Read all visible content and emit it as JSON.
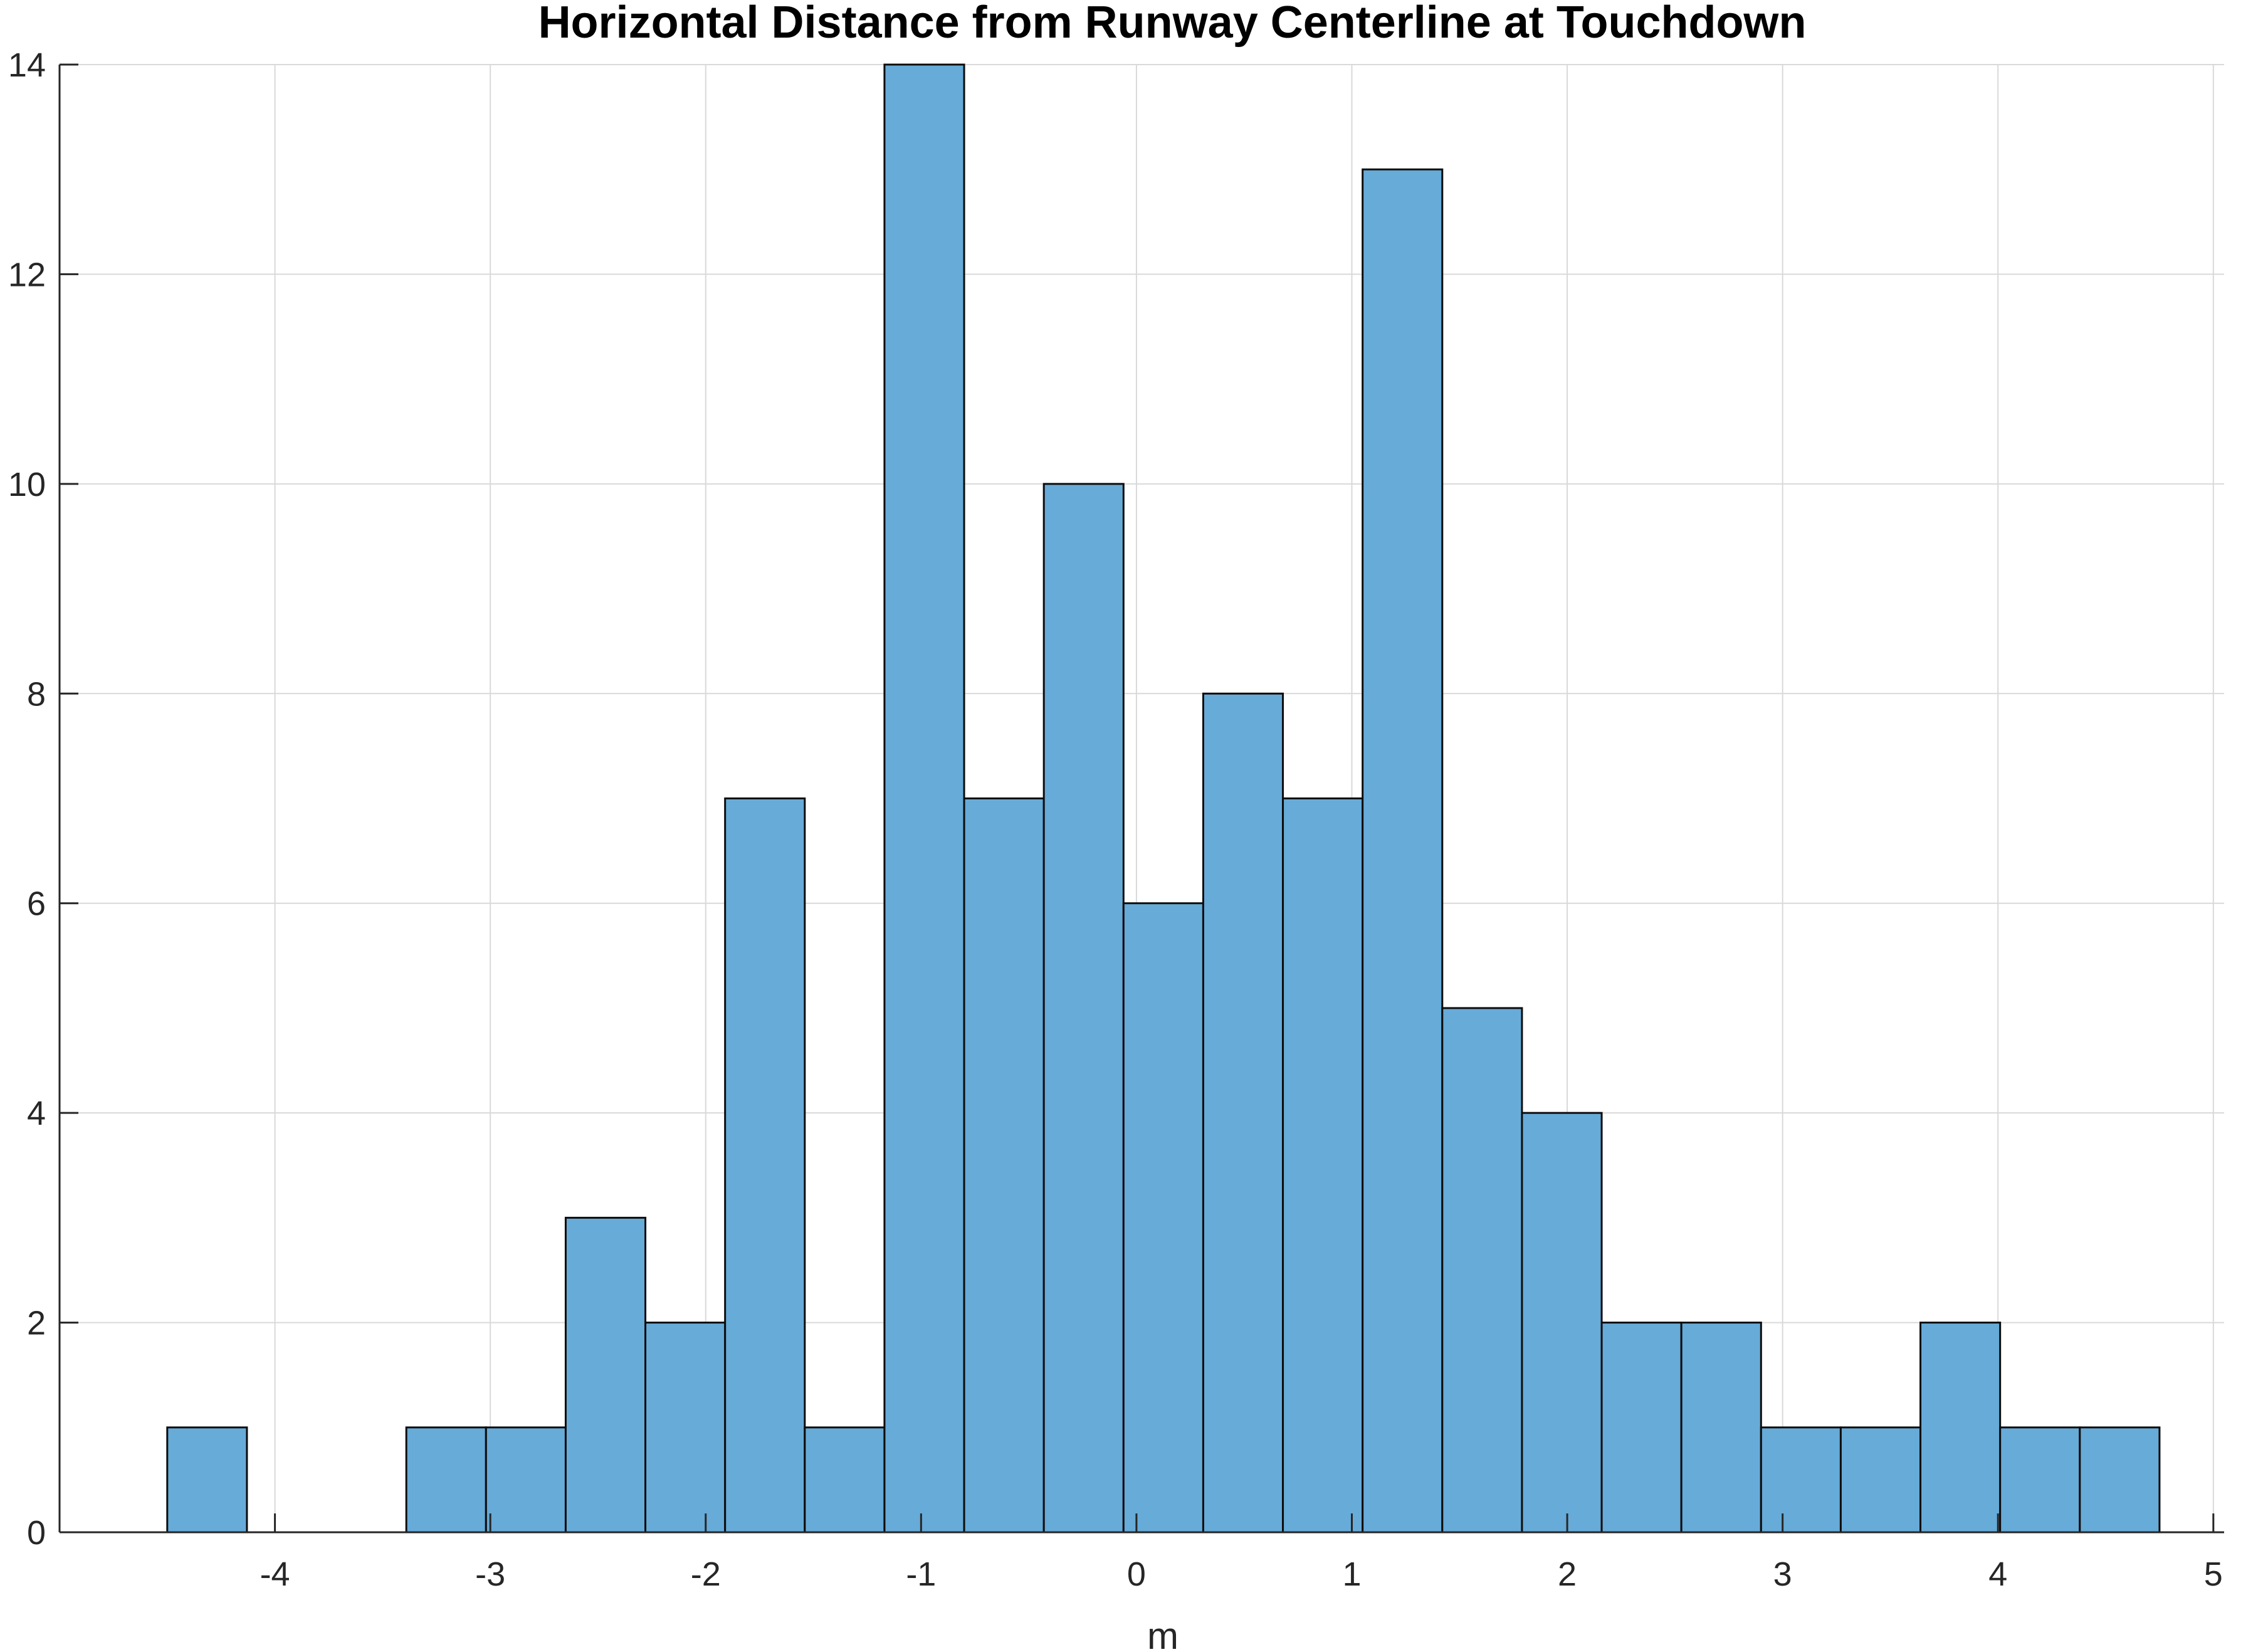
{
  "chart_data": {
    "type": "bar",
    "title": "Horizontal Distance from Runway Centerline at Touchdown",
    "xlabel": "m",
    "ylabel": "",
    "xlim": [
      -5.0,
      5.05
    ],
    "ylim": [
      0,
      14
    ],
    "xticks": [
      "-4",
      "-3",
      "-2",
      "-1",
      "0",
      "1",
      "2",
      "3",
      "4",
      "5"
    ],
    "yticks": [
      "0",
      "2",
      "4",
      "6",
      "8",
      "10",
      "12",
      "14"
    ],
    "bin_edges": [
      -4.5,
      -4.13,
      -3.76,
      -3.39,
      -3.02,
      -2.65,
      -2.28,
      -1.91,
      -1.54,
      -1.17,
      -0.8,
      -0.43,
      -0.06,
      0.31,
      0.68,
      1.05,
      1.42,
      1.79,
      2.16,
      2.53,
      2.9,
      3.27,
      3.64,
      4.01,
      4.38,
      4.75
    ],
    "values": [
      1,
      0,
      0,
      1,
      1,
      3,
      2,
      7,
      1,
      14,
      7,
      10,
      6,
      8,
      7,
      13,
      5,
      4,
      2,
      2,
      1,
      1,
      2,
      1,
      1
    ],
    "grid": true,
    "colors": {
      "bar_fill": "#67abd8",
      "bar_edge": "#0d0d0d",
      "grid": "#d9d9d9",
      "axis": "#262626"
    }
  }
}
